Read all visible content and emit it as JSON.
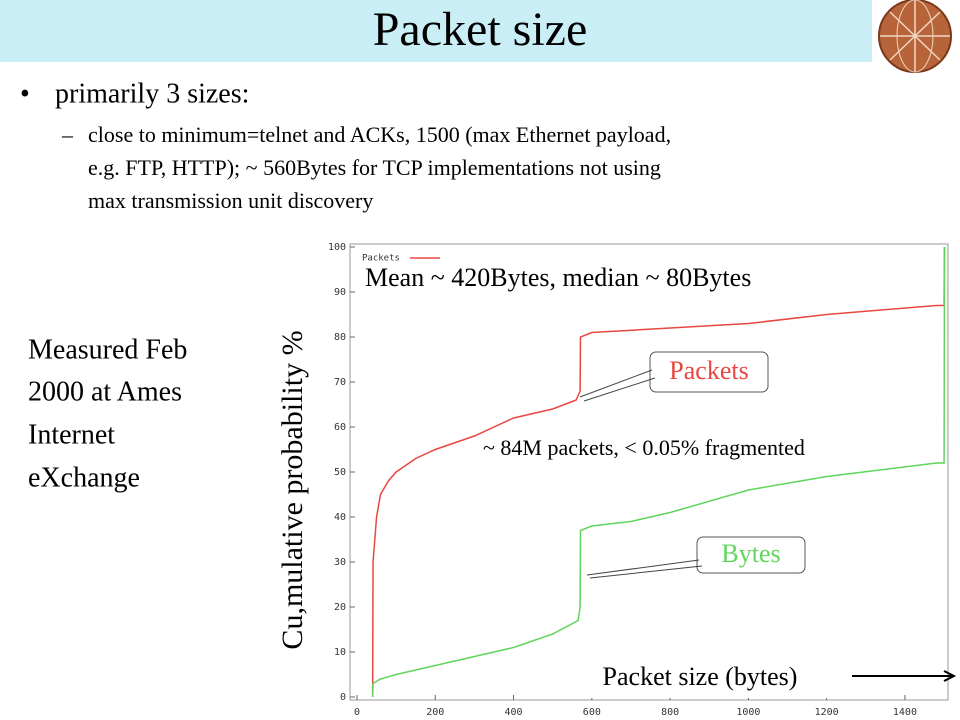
{
  "slide": {
    "title": "Packet size",
    "bullet": "primarily 3 sizes:",
    "sub_bullet_lines": [
      "close to minimum=telnet and ACKs, 1500 (max Ethernet payload,",
      "e.g. FTP, HTTP); ~ 560Bytes for TCP implementations not using",
      "max transmission unit discovery"
    ],
    "side_note_lines": [
      "Measured Feb",
      "2000 at Ames",
      "Internet",
      "eXchange"
    ]
  },
  "chart_data": {
    "type": "line",
    "xlabel": "Packet size (bytes)",
    "ylabel": "Cu,mulative probability %",
    "annotations": [
      "Mean ~ 420Bytes, median ~ 80Bytes",
      "~ 84M packets, < 0.05% fragmented"
    ],
    "xlim": [
      0,
      1510
    ],
    "ylim": [
      0,
      100
    ],
    "xticks": [
      0,
      200,
      400,
      600,
      800,
      1000,
      1200,
      1400
    ],
    "yticks": [
      0,
      10,
      20,
      30,
      40,
      50,
      60,
      70,
      80,
      90,
      100
    ],
    "legend": "upper left",
    "series": [
      {
        "name": "Packets",
        "color": "#e8473f",
        "x": [
          40,
          41,
          50,
          60,
          80,
          100,
          150,
          200,
          300,
          400,
          500,
          560,
          570,
          571,
          600,
          800,
          1000,
          1200,
          1480,
          1500,
          1501
        ],
        "values": [
          0,
          30,
          40,
          45,
          48,
          50,
          53,
          55,
          58,
          62,
          64,
          66,
          68,
          80,
          81,
          82,
          83,
          85,
          87,
          87,
          100
        ]
      },
      {
        "name": "Bytes",
        "color": "#5fd65a",
        "x": [
          40,
          41,
          60,
          100,
          200,
          300,
          400,
          500,
          565,
          570,
          571,
          600,
          700,
          800,
          1000,
          1200,
          1480,
          1500,
          1501
        ],
        "values": [
          0,
          3,
          4,
          5,
          7,
          9,
          11,
          14,
          17,
          20,
          37,
          38,
          39,
          41,
          46,
          49,
          52,
          52,
          100
        ]
      }
    ]
  }
}
